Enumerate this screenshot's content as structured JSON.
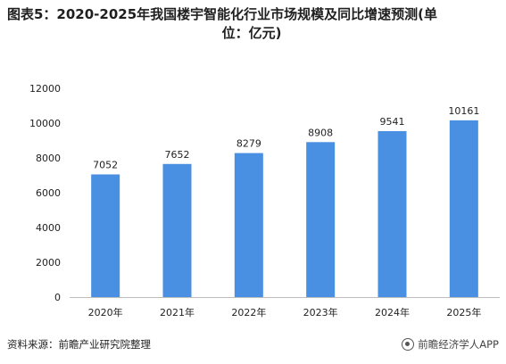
{
  "header": {
    "title_line1": "图表5：2020-2025年我国楼宇智能化行业市场规模及同比增速预测(单",
    "title_line2": "位：亿元)"
  },
  "footer": {
    "source": "资料来源：前瞻产业研究院整理",
    "brand": "前瞻经济学人APP"
  },
  "colors": {
    "bar": "#4a90e2",
    "axis": "#bdbdbd"
  },
  "chart_data": {
    "type": "bar",
    "title": "图表5：2020-2025年我国楼宇智能化行业市场规模及同比增速预测(单位：亿元)",
    "categories": [
      "2020年",
      "2021年",
      "2022年",
      "2023年",
      "2024年",
      "2025年"
    ],
    "values": [
      7052,
      7652,
      8279,
      8908,
      9541,
      10161
    ],
    "data_labels": [
      "7052",
      "7652",
      "8279",
      "8908",
      "9541",
      "10161"
    ],
    "yticks": [
      "0",
      "2000",
      "4000",
      "6000",
      "8000",
      "10000",
      "12000"
    ],
    "ylim": [
      0,
      12000
    ],
    "xlabel": "",
    "ylabel": "",
    "grid": false,
    "legend": false
  }
}
